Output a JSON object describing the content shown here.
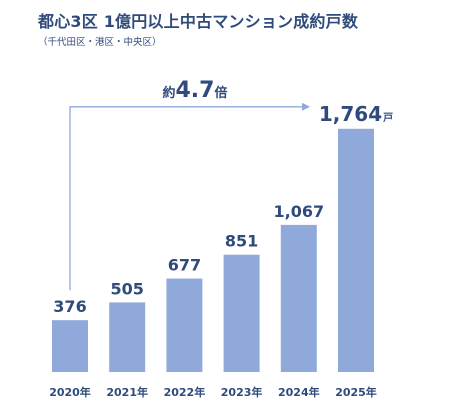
{
  "title": "都心3区 1億円以上中古マンション成約戸数",
  "subtitle": "（千代田区・港区・中央区）",
  "growth_annotation": {
    "prefix": "約",
    "value": "4.7",
    "suffix": "倍"
  },
  "colors": {
    "bar": "#8fa9db",
    "text": "#2f4b7c",
    "arrow": "#8fa9db"
  },
  "chart_data": {
    "type": "bar",
    "title": "都心3区 1億円以上中古マンション成約戸数",
    "subtitle": "（千代田区・港区・中央区）",
    "categories": [
      "2020年",
      "2021年",
      "2022年",
      "2023年",
      "2024年",
      "2025年"
    ],
    "values": [
      376,
      505,
      677,
      851,
      1067,
      1764
    ],
    "value_labels": [
      "376",
      "505",
      "677",
      "851",
      "1,067",
      "1,764"
    ],
    "last_value_unit": "戸",
    "xlabel": "",
    "ylabel": "",
    "ylim": [
      0,
      1900
    ],
    "grid": false,
    "legend": "none"
  }
}
